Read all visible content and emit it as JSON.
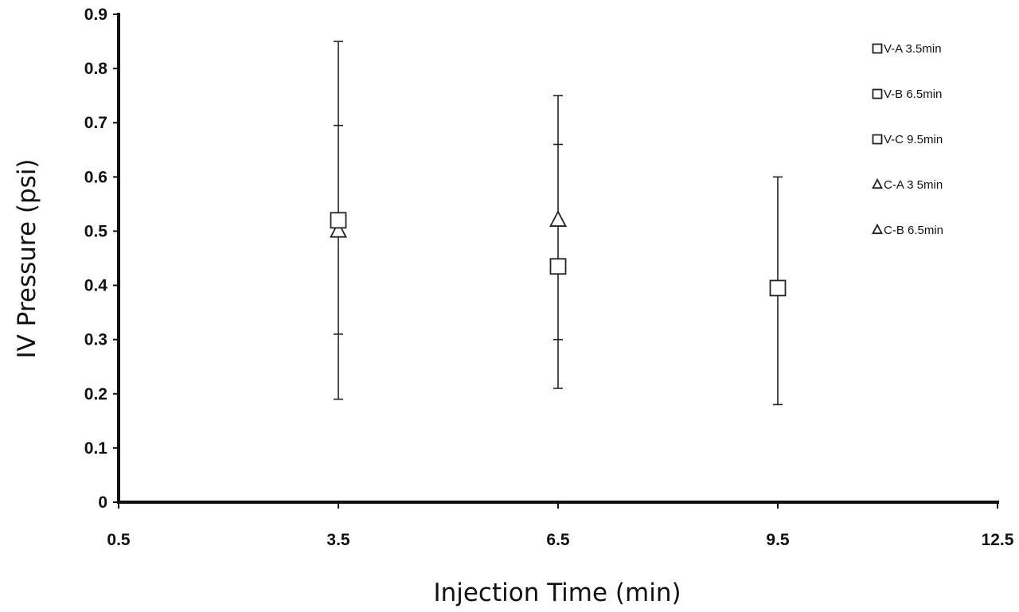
{
  "chart_data": {
    "type": "scatter",
    "title": "",
    "xlabel": "Injection Time (min)",
    "ylabel": "IV Pressure (psi)",
    "xlim": [
      0.5,
      12.5
    ],
    "ylim": [
      0,
      0.9
    ],
    "x_ticks": [
      "0.5",
      "3.5",
      "6.5",
      "9.5",
      "12.5"
    ],
    "y_ticks": [
      "0",
      "0.1",
      "0.2",
      "0.3",
      "0.4",
      "0.5",
      "0.6",
      "0.7",
      "0.8",
      "0.9"
    ],
    "grid": false,
    "legend_position": "top-right",
    "series": [
      {
        "name": "V-A 3.5min",
        "marker": "square",
        "x": 3.5,
        "y": 0.52,
        "y_err_low": 0.19,
        "y_err_high": 0.85,
        "y_err_inner": [
          0.31,
          0.695
        ]
      },
      {
        "name": "V-B 6.5min",
        "marker": "square",
        "x": 6.5,
        "y": 0.435,
        "y_err_low": 0.21,
        "y_err_high": 0.75,
        "y_err_inner": [
          0.3,
          0.66
        ]
      },
      {
        "name": "V-C 9.5min",
        "marker": "square",
        "x": 9.5,
        "y": 0.395,
        "y_err_low": 0.18,
        "y_err_high": 0.6,
        "y_err_inner": []
      },
      {
        "name": "C-A 3 5min",
        "marker": "triangle",
        "x": 3.5,
        "y": 0.5,
        "y_err_low": null,
        "y_err_high": null,
        "y_err_inner": []
      },
      {
        "name": "C-B 6.5min",
        "marker": "triangle",
        "x": 6.5,
        "y": 0.52,
        "y_err_low": null,
        "y_err_high": null,
        "y_err_inner": []
      }
    ],
    "colors": {
      "axis": "#111111",
      "marker_fill": "#ffffff",
      "marker_stroke": "#222222"
    }
  }
}
